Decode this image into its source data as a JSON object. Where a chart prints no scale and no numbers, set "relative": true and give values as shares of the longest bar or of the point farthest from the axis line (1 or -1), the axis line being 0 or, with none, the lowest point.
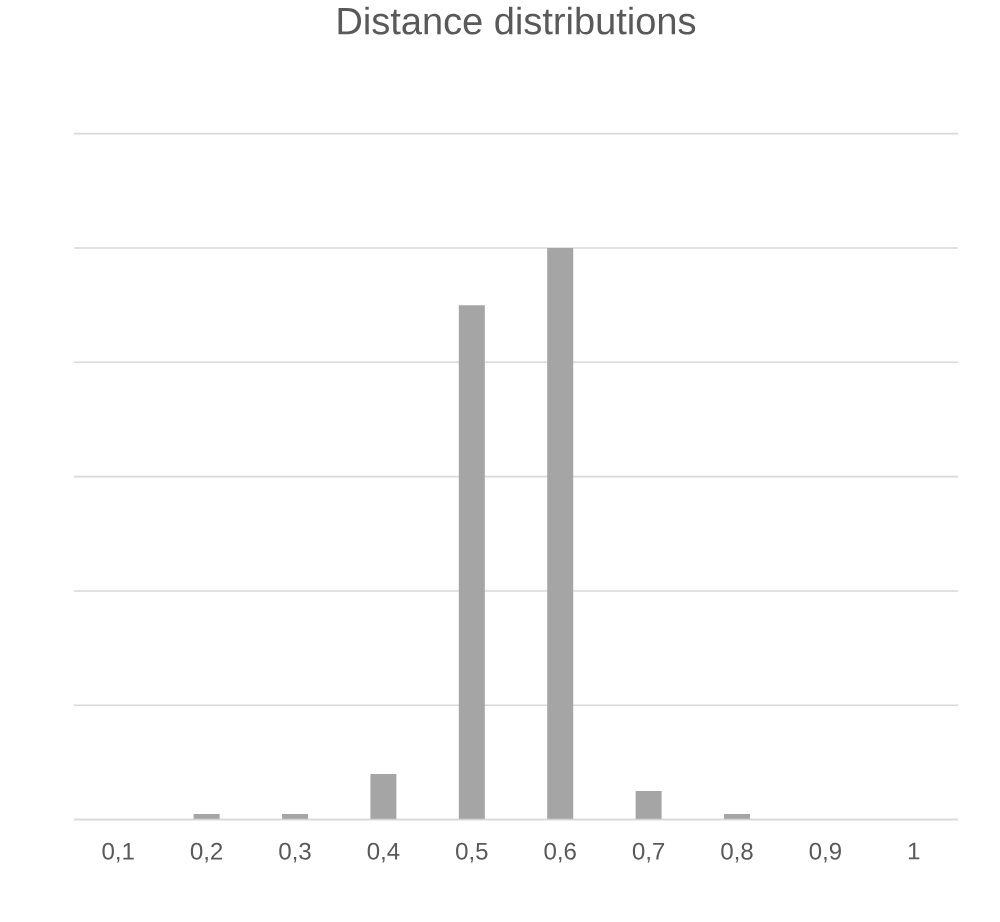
{
  "chart_data": {
    "type": "bar",
    "title": "Distance distributions",
    "relative": true,
    "grid": "y",
    "categories": [
      "0,1",
      "0,2",
      "0,3",
      "0,4",
      "0,5",
      "0,6",
      "0,7",
      "0,8",
      "0,9",
      "1"
    ],
    "values": [
      0,
      0.01,
      0.01,
      0.08,
      0.9,
      1,
      0.05,
      0.01,
      0,
      0
    ],
    "color": "#a5a5a5"
  }
}
